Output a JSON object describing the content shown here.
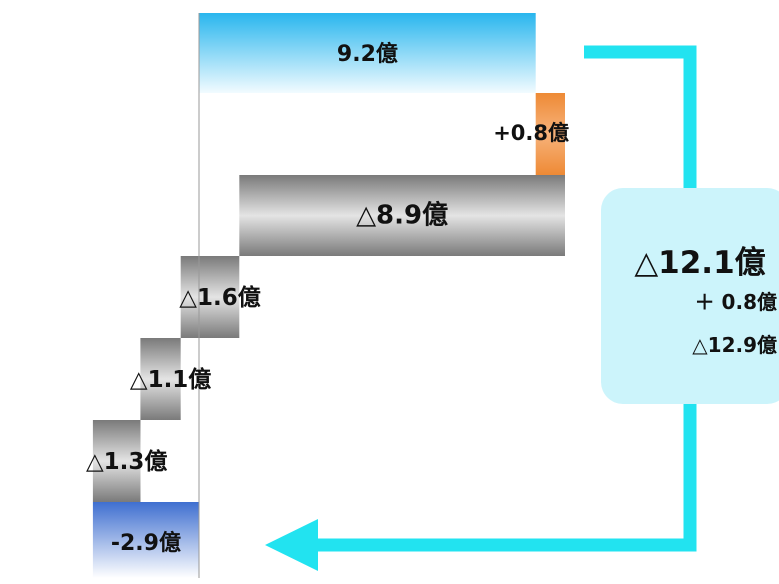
{
  "chart_data": {
    "type": "bar",
    "subtype": "horizontal-waterfall",
    "title": "",
    "xlabel": "",
    "ylabel": "",
    "xlim": [
      -2.9,
      9.3
    ],
    "steps": [
      {
        "label": "9.2億",
        "kind": "start",
        "value": 9.2,
        "from": 0,
        "to": 9.2
      },
      {
        "label": "+0.8億",
        "kind": "increase",
        "value": 0.8,
        "from": 9.2,
        "to": 10.0
      },
      {
        "label": "△8.9億",
        "kind": "decrease",
        "value": -8.9,
        "from": 10.0,
        "to": 1.1
      },
      {
        "label": "△1.6億",
        "kind": "decrease",
        "value": -1.6,
        "from": 1.1,
        "to": -0.5
      },
      {
        "label": "△1.1億",
        "kind": "decrease",
        "value": -1.1,
        "from": -0.5,
        "to": -1.6
      },
      {
        "label": "△1.3億",
        "kind": "decrease",
        "value": -1.3,
        "from": -1.6,
        "to": -2.9
      },
      {
        "label": "-2.9億",
        "kind": "end",
        "value": -2.9,
        "from": 0,
        "to": -2.9
      }
    ],
    "summary": {
      "total": "△12.1億",
      "lines": [
        "＋ 0.8億",
        "△12.9億"
      ]
    },
    "colors": {
      "start": "#2fb4ec",
      "increase": "#ef8c3c",
      "decrease": "#8a8a8a",
      "end": "#4a72c4",
      "arrow": "#22e3f0",
      "summary_box": "#ccf4fb",
      "zero_line": "#999999"
    }
  }
}
